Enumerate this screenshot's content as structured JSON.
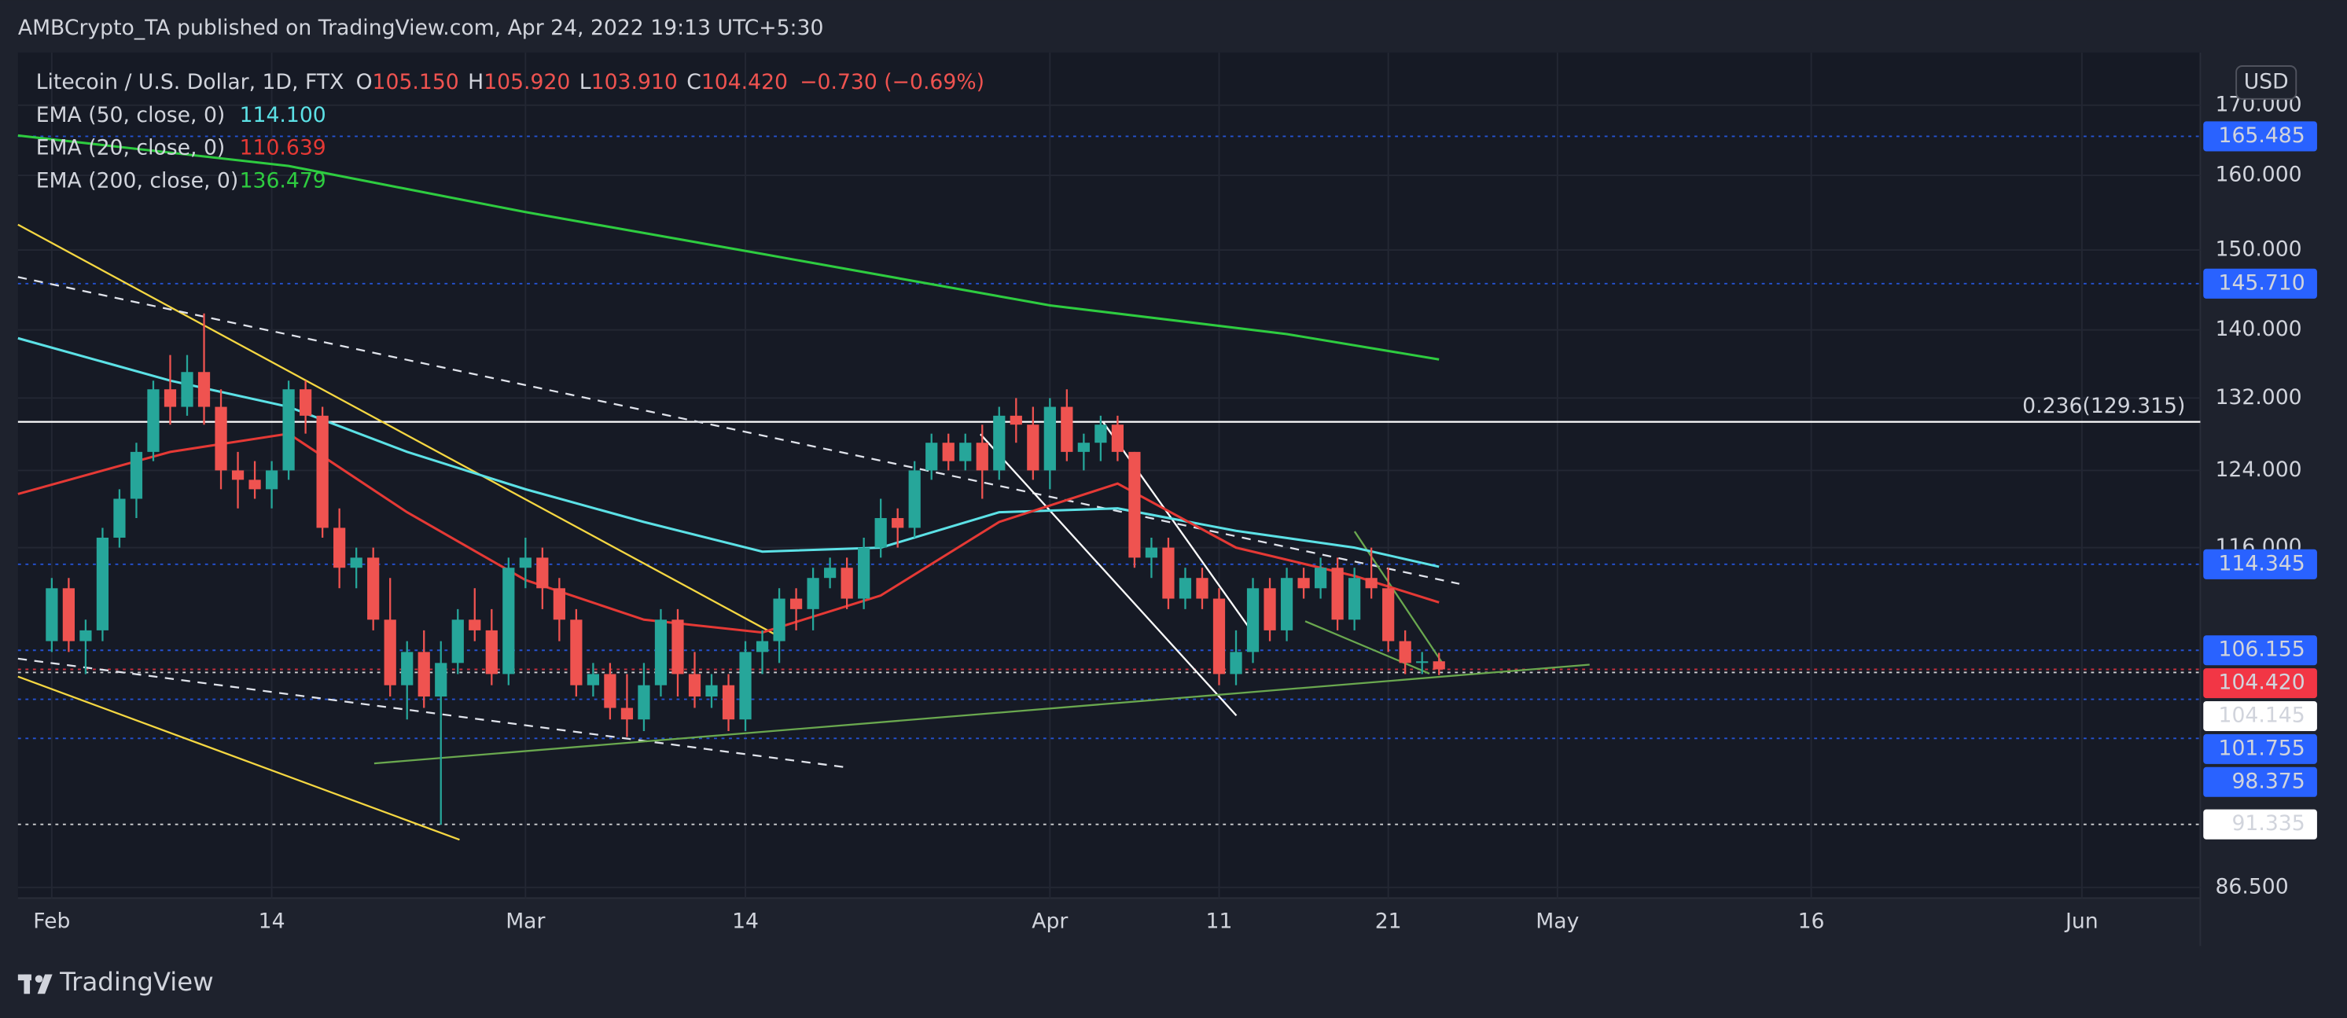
{
  "header": {
    "publisher": "AMBCrypto_TA published on TradingView.com, Apr 24, 2022 19:13 UTC+5:30"
  },
  "legend": {
    "symbol": "Litecoin / U.S. Dollar, 1D, FTX",
    "ohlc": [
      {
        "key": "O",
        "value": "105.150"
      },
      {
        "key": "H",
        "value": "105.920"
      },
      {
        "key": "L",
        "value": "103.910"
      },
      {
        "key": "C",
        "value": "104.420"
      }
    ],
    "change": "−0.730 (−0.69%)"
  },
  "currency": "USD",
  "footer": {
    "brand": "TradingView"
  },
  "chart_data": {
    "type": "candlestick",
    "log_scale": true,
    "grid": true,
    "up_color": "#26a69a",
    "down_color": "#ef5350",
    "xlim": [
      "Jan 30",
      "Jun 8"
    ],
    "ylim": [
      85.7,
      177.9
    ],
    "xticks": [
      {
        "value": "Feb 1",
        "label": "Feb"
      },
      {
        "value": "Feb 14",
        "label": "14"
      },
      {
        "value": "Mar 1",
        "label": "Mar"
      },
      {
        "value": "Mar 14",
        "label": "14"
      },
      {
        "value": "Apr 1",
        "label": "Apr"
      },
      {
        "value": "Apr 11",
        "label": "11"
      },
      {
        "value": "Apr 21",
        "label": "21"
      },
      {
        "value": "May 1",
        "label": "May"
      },
      {
        "value": "May 16",
        "label": "16"
      },
      {
        "value": "Jun 1",
        "label": "Jun"
      }
    ],
    "yticks": [
      {
        "value": 170,
        "label": "170.000"
      },
      {
        "value": 160,
        "label": "160.000"
      },
      {
        "value": 150,
        "label": "150.000"
      },
      {
        "value": 140,
        "label": "140.000"
      },
      {
        "value": 132,
        "label": "132.000"
      },
      {
        "value": 124,
        "label": "124.000"
      },
      {
        "value": 116,
        "label": "116.000"
      },
      {
        "value": 86.5,
        "label": "86.500"
      }
    ],
    "x": [
      "Feb 1",
      "Feb 2",
      "Feb 3",
      "Feb 4",
      "Feb 5",
      "Feb 6",
      "Feb 7",
      "Feb 8",
      "Feb 9",
      "Feb 10",
      "Feb 11",
      "Feb 12",
      "Feb 13",
      "Feb 14",
      "Feb 15",
      "Feb 16",
      "Feb 17",
      "Feb 18",
      "Feb 19",
      "Feb 20",
      "Feb 21",
      "Feb 22",
      "Feb 23",
      "Feb 24",
      "Feb 25",
      "Feb 26",
      "Feb 27",
      "Feb 28",
      "Mar 1",
      "Mar 2",
      "Mar 3",
      "Mar 4",
      "Mar 5",
      "Mar 6",
      "Mar 7",
      "Mar 8",
      "Mar 9",
      "Mar 10",
      "Mar 11",
      "Mar 12",
      "Mar 13",
      "Mar 14",
      "Mar 15",
      "Mar 16",
      "Mar 17",
      "Mar 18",
      "Mar 19",
      "Mar 20",
      "Mar 21",
      "Mar 22",
      "Mar 23",
      "Mar 24",
      "Mar 25",
      "Mar 26",
      "Mar 27",
      "Mar 28",
      "Mar 29",
      "Mar 30",
      "Mar 31",
      "Apr 1",
      "Apr 2",
      "Apr 3",
      "Apr 4",
      "Apr 5",
      "Apr 6",
      "Apr 7",
      "Apr 8",
      "Apr 9",
      "Apr 10",
      "Apr 11",
      "Apr 12",
      "Apr 13",
      "Apr 14",
      "Apr 15",
      "Apr 16",
      "Apr 17",
      "Apr 18",
      "Apr 19",
      "Apr 20",
      "Apr 21",
      "Apr 22",
      "Apr 23",
      "Apr 24"
    ],
    "open": [
      107,
      112,
      107,
      108,
      117,
      121,
      126,
      133,
      131,
      135,
      131,
      124,
      123,
      122,
      124,
      133,
      130,
      118,
      114,
      115,
      109,
      103,
      106,
      102,
      105,
      109,
      108,
      104,
      114,
      115,
      112,
      109,
      103,
      104,
      101,
      100,
      103,
      109,
      104,
      102,
      103,
      100,
      106,
      107,
      111,
      110,
      113,
      114,
      111,
      116,
      119,
      118,
      124,
      127,
      125,
      127,
      124,
      130,
      129,
      124,
      131,
      126,
      127,
      129,
      126,
      115,
      116,
      111,
      113,
      111,
      104,
      106,
      112,
      108,
      113,
      112,
      114,
      109,
      113,
      112,
      107,
      105,
      105.15
    ],
    "high": [
      113,
      113,
      109,
      118,
      122,
      127,
      134,
      137,
      137,
      142,
      133,
      126,
      125,
      125,
      134,
      134,
      131,
      120,
      116,
      116,
      113,
      107,
      108,
      107,
      110,
      112,
      110,
      115,
      117,
      116,
      113,
      110,
      105,
      105,
      104,
      105,
      110,
      110,
      106,
      104,
      104,
      107,
      108,
      112,
      112,
      114,
      115,
      115,
      117,
      121,
      120,
      125,
      128,
      128,
      128,
      129,
      131,
      132,
      131,
      132,
      133,
      128,
      130,
      130,
      126,
      117,
      117,
      114,
      114,
      112,
      108,
      113,
      113,
      114,
      114,
      115,
      115,
      114,
      116,
      114,
      108,
      106,
      105.92
    ],
    "low": [
      106,
      106,
      104,
      107,
      116,
      119,
      125,
      129,
      130,
      129,
      122,
      120,
      121,
      120,
      123,
      128,
      117,
      112,
      112,
      108,
      102,
      100,
      101,
      91.3,
      104,
      107,
      103,
      103,
      112,
      110,
      107,
      102,
      102,
      100,
      98.5,
      99,
      102,
      102,
      101,
      101,
      99,
      99,
      104,
      105,
      108,
      108,
      112,
      110,
      110,
      115,
      116,
      117,
      123,
      124,
      124,
      121,
      123,
      127,
      123,
      122,
      125,
      124,
      125,
      125,
      114,
      113,
      110,
      110,
      110,
      103,
      103,
      105,
      107,
      107,
      111,
      111,
      108,
      108,
      111,
      106,
      104,
      104,
      103.91
    ],
    "close": [
      112,
      107,
      108,
      117,
      121,
      126,
      133,
      131,
      135,
      131,
      124,
      123,
      122,
      124,
      133,
      130,
      118,
      114,
      115,
      109,
      103,
      106,
      102,
      105,
      109,
      108,
      104,
      114,
      115,
      112,
      109,
      103,
      104,
      101,
      100,
      103,
      109,
      104,
      102,
      103,
      100,
      106,
      107,
      111,
      110,
      113,
      114,
      111,
      116,
      119,
      118,
      124,
      127,
      125,
      127,
      124,
      130,
      129,
      124,
      131,
      126,
      127,
      129,
      126,
      115,
      116,
      111,
      113,
      111,
      104,
      106,
      112,
      108,
      113,
      112,
      114,
      109,
      113,
      112,
      107,
      105,
      105.15,
      104.42
    ],
    "series": [
      {
        "name": "EMA (50, close, 0)",
        "legend_value": "114.100",
        "color": "#5ce1e6",
        "x": [
          "Jan 30",
          "Feb 8",
          "Feb 15",
          "Feb 22",
          "Mar 1",
          "Mar 8",
          "Mar 15",
          "Mar 22",
          "Mar 29",
          "Apr 5",
          "Apr 12",
          "Apr 19",
          "Apr 24"
        ],
        "values": [
          139,
          134,
          131,
          126,
          122,
          118.6,
          115.6,
          116,
          119.6,
          120,
          117.7,
          116,
          114.1
        ]
      },
      {
        "name": "EMA (20, close, 0)",
        "legend_value": "110.639",
        "color": "#e53935",
        "x": [
          "Jan 30",
          "Feb 8",
          "Feb 15",
          "Feb 22",
          "Mar 1",
          "Mar 8",
          "Mar 15",
          "Mar 22",
          "Mar 29",
          "Apr 5",
          "Apr 12",
          "Apr 19",
          "Apr 24"
        ],
        "values": [
          121.5,
          126,
          128,
          119.6,
          112.8,
          109,
          107.8,
          111.3,
          118.6,
          122.6,
          116,
          113.2,
          110.639
        ]
      },
      {
        "name": "EMA (200, close, 0)",
        "legend_value": "136.479",
        "color": "#2ecc40",
        "x": [
          "Jan 30",
          "Feb 15",
          "Mar 1",
          "Mar 15",
          "Apr 1",
          "Apr 15",
          "Apr 24"
        ],
        "values": [
          165.6,
          161.3,
          155,
          149.5,
          143,
          139.5,
          136.479
        ]
      }
    ],
    "levels": [
      {
        "value": 165.485,
        "label": "165.485",
        "color": "#2962ff"
      },
      {
        "value": 145.71,
        "label": "145.710",
        "color": "#2962ff"
      },
      {
        "value": 114.345,
        "label": "114.345",
        "color": "#2962ff"
      },
      {
        "value": 106.155,
        "label": "106.155",
        "color": "#2962ff"
      },
      {
        "value": 104.42,
        "label": "104.420",
        "color": "#f23645"
      },
      {
        "value": 104.145,
        "label": "104.145",
        "color": "#ffffff"
      },
      {
        "value": 101.755,
        "label": "101.755",
        "color": "#2962ff"
      },
      {
        "value": 98.375,
        "label": "98.375",
        "color": "#2962ff"
      },
      {
        "value": 91.335,
        "label": "91.335",
        "color": "#ffffff"
      }
    ],
    "fib": {
      "value": 129.315,
      "label": "0.236(129.315)"
    }
  }
}
